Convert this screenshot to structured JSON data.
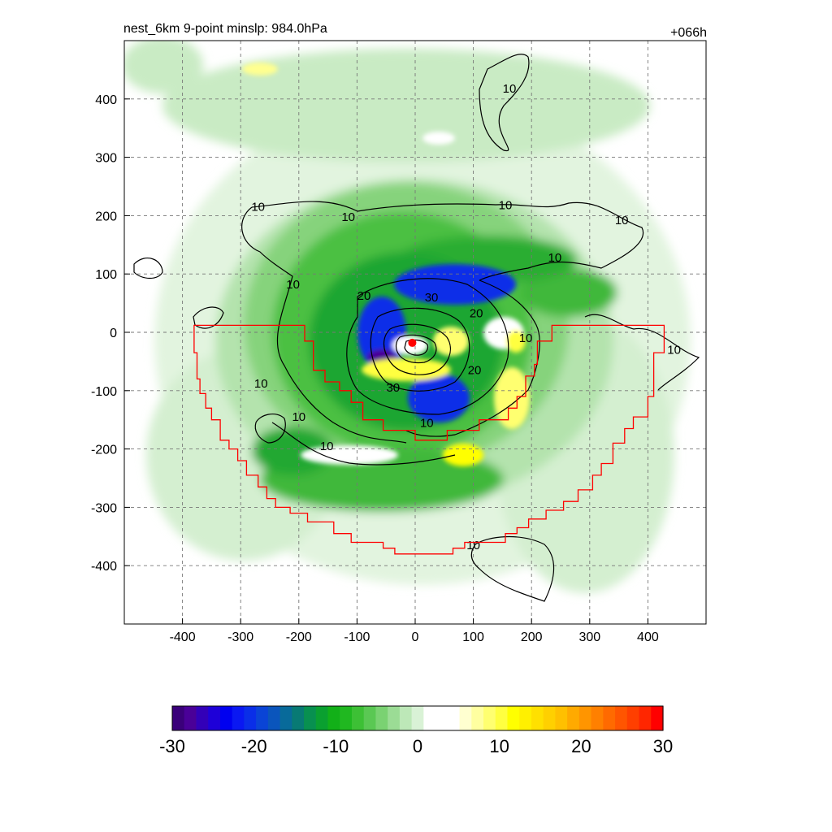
{
  "title_left": "nest_6km  9-point minslp: 984.0hPa",
  "title_right": "+066h",
  "chart_data": {
    "type": "contour",
    "x": {
      "range": [
        -500,
        500
      ],
      "ticks": [
        -400,
        -300,
        -200,
        -100,
        0,
        100,
        200,
        300,
        400
      ]
    },
    "y": {
      "range": [
        -500,
        500
      ],
      "ticks": [
        400,
        300,
        200,
        100,
        0,
        -100,
        -200,
        -300,
        -400
      ]
    },
    "grid": true,
    "grid_style": "dashed",
    "fill_scale": {
      "min": -30,
      "max": 30,
      "tick_labels": [
        "-30",
        "-20",
        "-10",
        "0",
        "10",
        "20",
        "30"
      ],
      "tick_values": [
        -30,
        -20,
        -10,
        0,
        10,
        20,
        30
      ],
      "colors": [
        "#3a007a",
        "#4a0098",
        "#3300b8",
        "#1e00d8",
        "#0000f0",
        "#0a18f2",
        "#0a2ee8",
        "#0a44d6",
        "#0a55bc",
        "#086a9a",
        "#087a74",
        "#089050",
        "#0aa030",
        "#12b018",
        "#20b820",
        "#3dc035",
        "#5ac853",
        "#7ad272",
        "#9bdc95",
        "#bde8b8",
        "#d9f2d6",
        "#ffffff",
        "#ffffff",
        "#ffffff",
        "#ffffd0",
        "#ffffa0",
        "#ffff70",
        "#ffff40",
        "#ffff00",
        "#fff000",
        "#ffe000",
        "#ffd000",
        "#ffc000",
        "#ffaa00",
        "#ff9500",
        "#ff8000",
        "#ff6a00",
        "#ff5500",
        "#ff3f00",
        "#ff2600",
        "#ff0000"
      ]
    },
    "center_marker": {
      "x": -5,
      "y": -18,
      "color": "#ff0000"
    },
    "contour_labels": [
      {
        "text": "10",
        "x": -270,
        "y": 215
      },
      {
        "text": "10",
        "x": -115,
        "y": 198
      },
      {
        "text": "10",
        "x": 155,
        "y": 218
      },
      {
        "text": "10",
        "x": 355,
        "y": 192
      },
      {
        "text": "10",
        "x": 240,
        "y": 128
      },
      {
        "text": "10",
        "x": 162,
        "y": 418
      },
      {
        "text": "10",
        "x": -210,
        "y": 82
      },
      {
        "text": "10",
        "x": -265,
        "y": -88
      },
      {
        "text": "10",
        "x": -200,
        "y": -145
      },
      {
        "text": "10",
        "x": -152,
        "y": -195
      },
      {
        "text": "10",
        "x": 20,
        "y": -155
      },
      {
        "text": "10",
        "x": 100,
        "y": -365
      },
      {
        "text": "10",
        "x": 445,
        "y": -30
      },
      {
        "text": "10",
        "x": 190,
        "y": -10
      },
      {
        "text": "20",
        "x": -88,
        "y": 63
      },
      {
        "text": "30",
        "x": 28,
        "y": 60
      },
      {
        "text": "20",
        "x": 105,
        "y": 33
      },
      {
        "text": "20",
        "x": 102,
        "y": -65
      },
      {
        "text": "30",
        "x": -38,
        "y": -95
      }
    ],
    "boundary_color": "#ff0000",
    "boundary": [
      [
        -380,
        12
      ],
      [
        -190,
        12
      ],
      [
        -190,
        -15
      ],
      [
        -175,
        -15
      ],
      [
        -175,
        -65
      ],
      [
        -155,
        -65
      ],
      [
        -155,
        -85
      ],
      [
        -130,
        -85
      ],
      [
        -130,
        -100
      ],
      [
        -110,
        -100
      ],
      [
        -110,
        -120
      ],
      [
        -90,
        -120
      ],
      [
        -90,
        -150
      ],
      [
        -55,
        -150
      ],
      [
        -55,
        -168
      ],
      [
        0,
        -168
      ],
      [
        0,
        -185
      ],
      [
        55,
        -185
      ],
      [
        55,
        -168
      ],
      [
        110,
        -168
      ],
      [
        110,
        -150
      ],
      [
        160,
        -150
      ],
      [
        160,
        -130
      ],
      [
        175,
        -130
      ],
      [
        175,
        -110
      ],
      [
        190,
        -110
      ],
      [
        190,
        -75
      ],
      [
        205,
        -75
      ],
      [
        205,
        -55
      ],
      [
        210,
        -55
      ],
      [
        210,
        -15
      ],
      [
        235,
        -15
      ],
      [
        235,
        12
      ],
      [
        428,
        12
      ],
      [
        428,
        -35
      ],
      [
        410,
        -35
      ],
      [
        410,
        -110
      ],
      [
        400,
        -110
      ],
      [
        400,
        -145
      ],
      [
        375,
        -145
      ],
      [
        375,
        -165
      ],
      [
        360,
        -165
      ],
      [
        360,
        -190
      ],
      [
        340,
        -190
      ],
      [
        340,
        -225
      ],
      [
        320,
        -225
      ],
      [
        320,
        -245
      ],
      [
        305,
        -245
      ],
      [
        305,
        -270
      ],
      [
        280,
        -270
      ],
      [
        280,
        -290
      ],
      [
        255,
        -290
      ],
      [
        255,
        -305
      ],
      [
        225,
        -305
      ],
      [
        225,
        -320
      ],
      [
        195,
        -320
      ],
      [
        195,
        -335
      ],
      [
        175,
        -335
      ],
      [
        175,
        -345
      ],
      [
        155,
        -345
      ],
      [
        155,
        -360
      ],
      [
        85,
        -360
      ],
      [
        85,
        -370
      ],
      [
        65,
        -370
      ],
      [
        65,
        -380
      ],
      [
        -35,
        -380
      ],
      [
        -35,
        -370
      ],
      [
        -55,
        -370
      ],
      [
        -55,
        -360
      ],
      [
        -110,
        -360
      ],
      [
        -110,
        -345
      ],
      [
        -140,
        -345
      ],
      [
        -140,
        -325
      ],
      [
        -185,
        -325
      ],
      [
        -185,
        -310
      ],
      [
        -215,
        -310
      ],
      [
        -215,
        -300
      ],
      [
        -240,
        -300
      ],
      [
        -240,
        -285
      ],
      [
        -255,
        -285
      ],
      [
        -255,
        -265
      ],
      [
        -270,
        -265
      ],
      [
        -270,
        -245
      ],
      [
        -290,
        -245
      ],
      [
        -290,
        -220
      ],
      [
        -305,
        -220
      ],
      [
        -305,
        -200
      ],
      [
        -320,
        -200
      ],
      [
        -320,
        -185
      ],
      [
        -335,
        -185
      ],
      [
        -335,
        -150
      ],
      [
        -350,
        -150
      ],
      [
        -350,
        -130
      ],
      [
        -360,
        -130
      ],
      [
        -360,
        -105
      ],
      [
        -370,
        -105
      ],
      [
        -370,
        -80
      ],
      [
        -375,
        -80
      ],
      [
        -375,
        -35
      ],
      [
        -380,
        -35
      ],
      [
        -380,
        12
      ]
    ]
  }
}
